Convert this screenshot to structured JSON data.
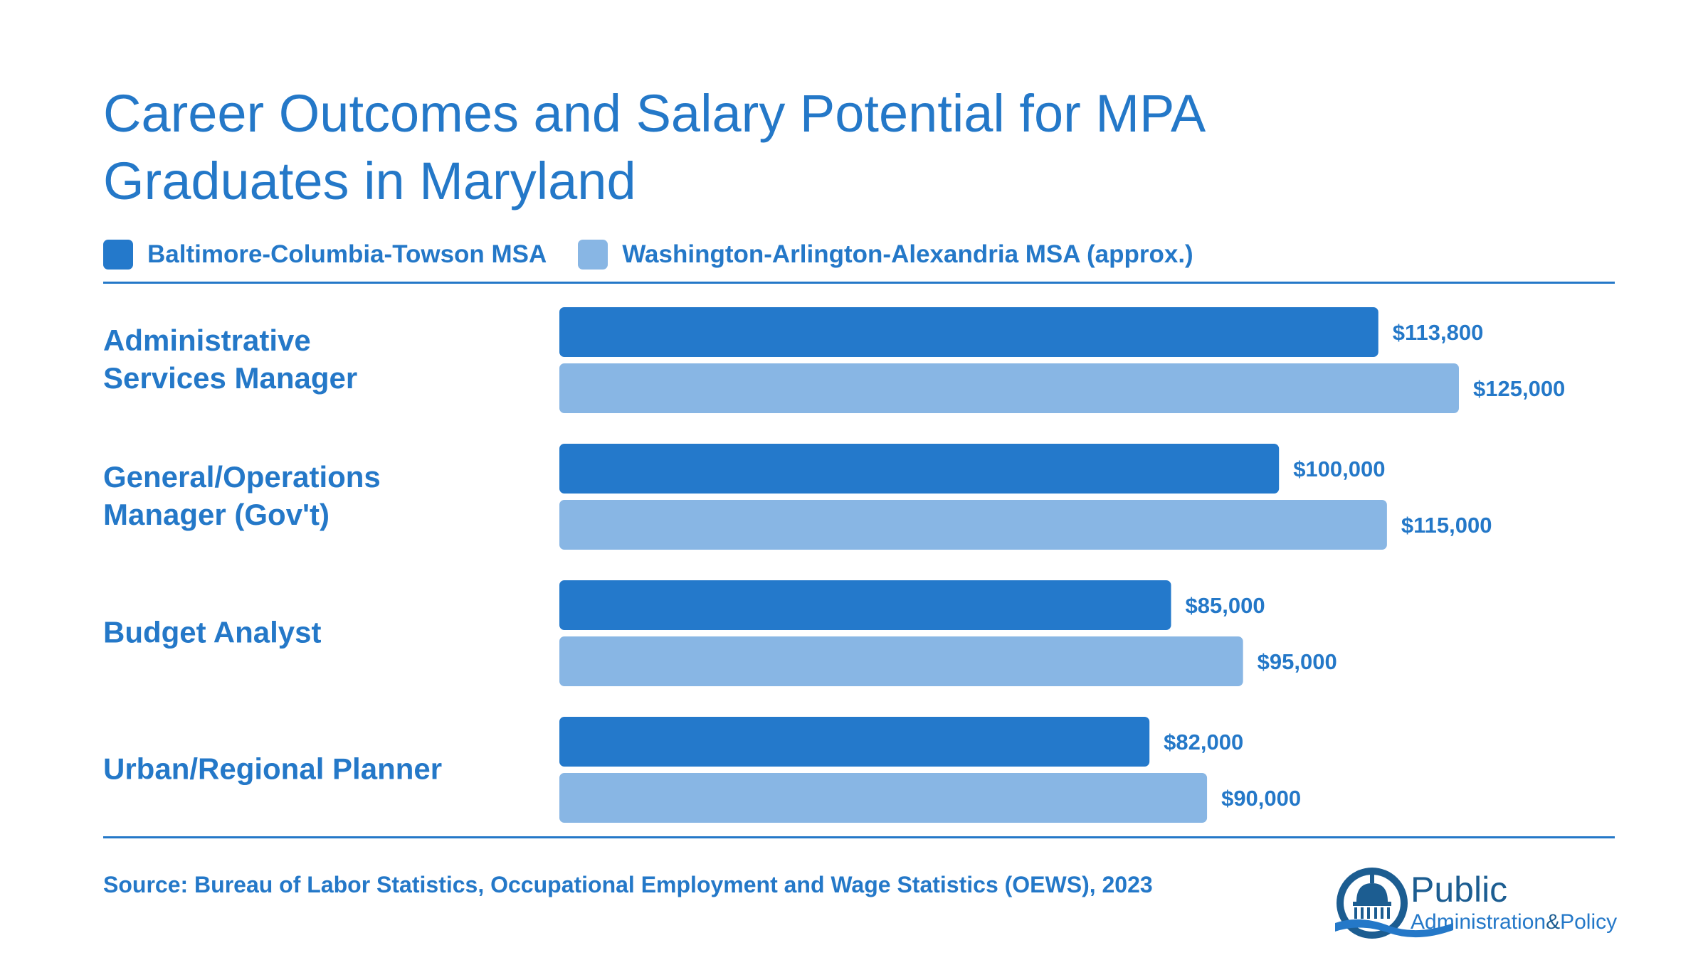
{
  "chart_data": {
    "type": "bar",
    "orientation": "horizontal",
    "title": "Career Outcomes and Salary Potential for MPA Graduates in Maryland",
    "categories": [
      "Administrative Services Manager",
      "General/Operations Manager (Gov't)",
      "Budget Analyst",
      "Urban/Regional Planner"
    ],
    "series": [
      {
        "name": "Baltimore-Columbia-Towson MSA",
        "color": "#2479CB",
        "values": [
          113800,
          100000,
          85000,
          82000
        ],
        "labels": [
          "$113,800",
          "$100,000",
          "$85,000",
          "$82,000"
        ]
      },
      {
        "name": "Washington-Arlington-Alexandria MSA (approx.)",
        "color": "#88B6E4",
        "values": [
          125000,
          115000,
          95000,
          90000
        ],
        "labels": [
          "$125,000",
          "$115,000",
          "$95,000",
          "$90,000"
        ]
      }
    ],
    "xlim": [
      0,
      125000
    ],
    "grid": false,
    "legend_position": "top-left",
    "source": "Source: Bureau of Labor Statistics, Occupational Employment and Wage Statistics (OEWS), 2023"
  },
  "colors": {
    "text": "#2478C8",
    "logo_dark": "#1C5D91"
  },
  "logo": {
    "icon": "capitol-dome-icon",
    "line1": "Public",
    "line2": "Administration",
    "ampersand": "&",
    "line3": "Policy"
  }
}
